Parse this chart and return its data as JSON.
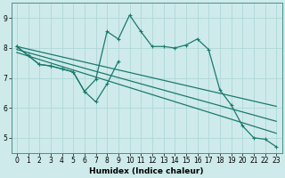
{
  "xlabel": "Humidex (Indice chaleur)",
  "background_color": "#ceeaea",
  "grid_color": "#b0d8d8",
  "line_color": "#1a7a6e",
  "xlim": [
    -0.5,
    23.5
  ],
  "ylim": [
    4.5,
    9.5
  ],
  "xticks": [
    0,
    1,
    2,
    3,
    4,
    5,
    6,
    7,
    8,
    9,
    10,
    11,
    12,
    13,
    14,
    15,
    16,
    17,
    18,
    19,
    20,
    21,
    22,
    23
  ],
  "yticks": [
    5,
    6,
    7,
    8,
    9
  ],
  "series_zigzag_short": {
    "x": [
      0,
      1,
      2,
      3,
      4,
      5,
      6,
      7,
      8,
      9
    ],
    "y": [
      8.05,
      7.75,
      7.45,
      7.4,
      7.3,
      7.2,
      6.55,
      6.2,
      6.8,
      7.55
    ]
  },
  "series_zigzag_full": {
    "x": [
      0,
      1,
      2,
      3,
      4,
      5,
      6,
      7,
      8,
      9,
      10,
      11,
      12,
      13,
      14,
      15,
      16,
      17,
      18,
      19,
      20,
      21,
      22,
      23
    ],
    "y": [
      8.05,
      7.75,
      7.45,
      7.4,
      7.3,
      7.2,
      6.55,
      6.95,
      8.55,
      8.3,
      9.1,
      8.55,
      8.05,
      8.05,
      8.0,
      8.1,
      8.3,
      7.95,
      6.6,
      6.1,
      5.4,
      5.0,
      4.95,
      4.7
    ]
  },
  "regression_lines": [
    {
      "x": [
        0,
        23
      ],
      "y": [
        8.05,
        6.05
      ]
    },
    {
      "x": [
        0,
        23
      ],
      "y": [
        7.95,
        5.55
      ]
    },
    {
      "x": [
        0,
        23
      ],
      "y": [
        7.85,
        5.15
      ]
    }
  ]
}
